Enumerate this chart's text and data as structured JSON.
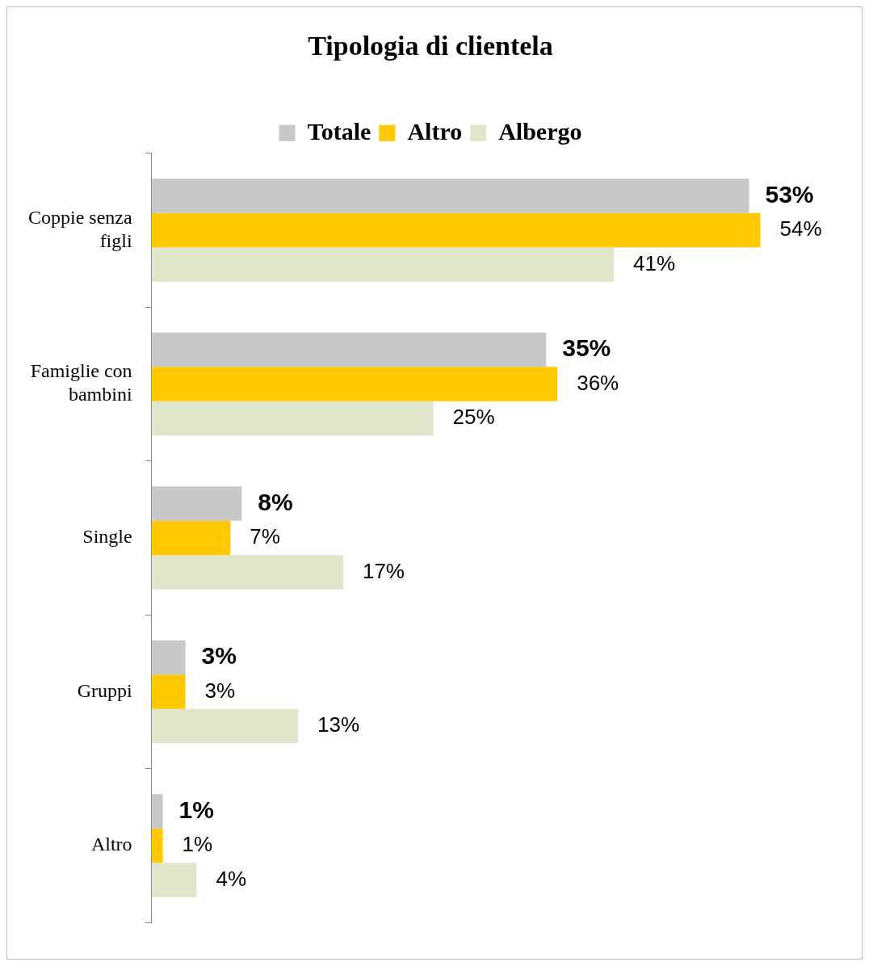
{
  "chart_data": {
    "type": "bar",
    "orientation": "horizontal",
    "title": "Tipologia di clientela",
    "categories": [
      "Coppie senza figli",
      "Famiglie con bambini",
      "Single",
      "Gruppi",
      "Altro"
    ],
    "series": [
      {
        "name": "Totale",
        "color": "#c8c8c8",
        "values": [
          53,
          35,
          8,
          3,
          1
        ],
        "value_labels": [
          "53%",
          "35%",
          "8%",
          "3%",
          "1%"
        ]
      },
      {
        "name": "Altro",
        "color": "#ffc800",
        "values": [
          54,
          36,
          7,
          3,
          1
        ],
        "value_labels": [
          "54%",
          "36%",
          "7%",
          "3%",
          "1%"
        ]
      },
      {
        "name": "Albergo",
        "color": "#dfe6cb",
        "values": [
          41,
          25,
          17,
          13,
          4
        ],
        "value_labels": [
          "41%",
          "25%",
          "17%",
          "13%",
          "4%"
        ]
      }
    ],
    "legend": "top",
    "grid": false
  }
}
